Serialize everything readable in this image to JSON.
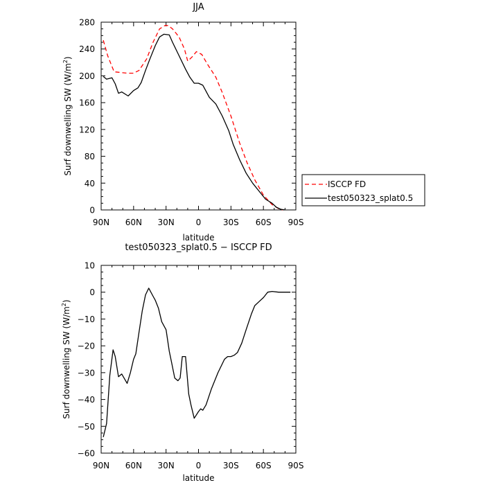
{
  "chart_data": [
    {
      "type": "line",
      "title": "JJA",
      "xlabel": "latitude",
      "ylabel": "Surf downwelling SW (W/m",
      "ylabel_sup": "2",
      "ylabel_close": ")",
      "xlim": [
        90,
        -90
      ],
      "ylim": [
        0,
        280
      ],
      "xticks": [
        90,
        60,
        30,
        0,
        -30,
        -60,
        -90
      ],
      "xtick_labels": [
        "90N",
        "60N",
        "30N",
        "0",
        "30S",
        "60S",
        "90S"
      ],
      "yticks": [
        0,
        40,
        80,
        120,
        160,
        200,
        240,
        280
      ],
      "ytick_labels": [
        "0",
        "40",
        "80",
        "120",
        "160",
        "200",
        "240",
        "280"
      ],
      "legend_position": "right",
      "series": [
        {
          "name": "ISCCP FD",
          "color": "#ff0000",
          "dash": "dashed",
          "points": [
            [
              88,
              253
            ],
            [
              84,
              230
            ],
            [
              78,
              206
            ],
            [
              72,
              205
            ],
            [
              66,
              204
            ],
            [
              60,
              204
            ],
            [
              55,
              208
            ],
            [
              48,
              225
            ],
            [
              42,
              250
            ],
            [
              36,
              270
            ],
            [
              31,
              275
            ],
            [
              28,
              275
            ],
            [
              24,
              270
            ],
            [
              18,
              258
            ],
            [
              13,
              240
            ],
            [
              10,
              222
            ],
            [
              6,
              228
            ],
            [
              2,
              236
            ],
            [
              -3,
              232
            ],
            [
              -8,
              218
            ],
            [
              -16,
              198
            ],
            [
              -22,
              175
            ],
            [
              -30,
              140
            ],
            [
              -38,
              100
            ],
            [
              -45,
              70
            ],
            [
              -52,
              45
            ],
            [
              -60,
              22
            ],
            [
              -68,
              8
            ],
            [
              -74,
              2
            ],
            [
              -78,
              0
            ]
          ]
        },
        {
          "name": "test050323_splat0.5",
          "color": "#000000",
          "dash": "solid",
          "points": [
            [
              88,
              199
            ],
            [
              85,
              195
            ],
            [
              80,
              197
            ],
            [
              77,
              188
            ],
            [
              74,
              174
            ],
            [
              71,
              176
            ],
            [
              65,
              170
            ],
            [
              60,
              178
            ],
            [
              56,
              182
            ],
            [
              53,
              190
            ],
            [
              49,
              208
            ],
            [
              45,
              225
            ],
            [
              40,
              245
            ],
            [
              36,
              258
            ],
            [
              32,
              262
            ],
            [
              27,
              261
            ],
            [
              24,
              250
            ],
            [
              18,
              230
            ],
            [
              12,
              210
            ],
            [
              8,
              198
            ],
            [
              4,
              189
            ],
            [
              0,
              189
            ],
            [
              -4,
              186
            ],
            [
              -10,
              168
            ],
            [
              -16,
              158
            ],
            [
              -22,
              140
            ],
            [
              -28,
              118
            ],
            [
              -32,
              98
            ],
            [
              -38,
              75
            ],
            [
              -44,
              55
            ],
            [
              -50,
              40
            ],
            [
              -56,
              28
            ],
            [
              -62,
              16
            ],
            [
              -68,
              10
            ],
            [
              -72,
              4
            ],
            [
              -76,
              1
            ],
            [
              -80,
              0
            ]
          ]
        }
      ]
    },
    {
      "type": "line",
      "title": "test050323_splat0.5 − ISCCP FD",
      "xlabel": "latitude",
      "ylabel": "Surf downwelling SW (W/m",
      "ylabel_sup": "2",
      "ylabel_close": ")",
      "xlim": [
        90,
        -90
      ],
      "ylim": [
        -60,
        10
      ],
      "xticks": [
        90,
        60,
        30,
        0,
        -30,
        -60,
        -90
      ],
      "xtick_labels": [
        "90N",
        "60N",
        "30N",
        "0",
        "30S",
        "60S",
        "90S"
      ],
      "yticks": [
        -60,
        -50,
        -40,
        -30,
        -20,
        -10,
        0,
        10
      ],
      "ytick_labels": [
        "−60",
        "−50",
        "−40",
        "−30",
        "−20",
        "−10",
        "0",
        "10"
      ],
      "series": [
        {
          "color": "#000000",
          "dash": "solid",
          "points": [
            [
              88,
              -54
            ],
            [
              85,
              -49
            ],
            [
              82,
              -31
            ],
            [
              79,
              -21.5
            ],
            [
              77,
              -24
            ],
            [
              74,
              -31.5
            ],
            [
              71,
              -30.5
            ],
            [
              66,
              -34
            ],
            [
              63,
              -30
            ],
            [
              60,
              -25
            ],
            [
              58,
              -23
            ],
            [
              55,
              -15
            ],
            [
              52,
              -7
            ],
            [
              49,
              -1
            ],
            [
              46,
              1.5
            ],
            [
              42,
              -1.5
            ],
            [
              40,
              -3
            ],
            [
              37,
              -6
            ],
            [
              34,
              -11
            ],
            [
              30,
              -14
            ],
            [
              27,
              -22
            ],
            [
              25,
              -26
            ],
            [
              22,
              -32
            ],
            [
              19,
              -33
            ],
            [
              17,
              -32
            ],
            [
              15,
              -24
            ],
            [
              12,
              -24
            ],
            [
              9,
              -38
            ],
            [
              7,
              -42
            ],
            [
              4,
              -47
            ],
            [
              0,
              -44.5
            ],
            [
              -2,
              -43.5
            ],
            [
              -4,
              -44
            ],
            [
              -7,
              -42
            ],
            [
              -12,
              -36
            ],
            [
              -18,
              -30
            ],
            [
              -24,
              -25
            ],
            [
              -27,
              -24
            ],
            [
              -30,
              -24
            ],
            [
              -33,
              -23.5
            ],
            [
              -36,
              -22.5
            ],
            [
              -40,
              -19
            ],
            [
              -44,
              -14
            ],
            [
              -49,
              -8
            ],
            [
              -52,
              -5
            ],
            [
              -56,
              -3.5
            ],
            [
              -60,
              -2
            ],
            [
              -64,
              0
            ],
            [
              -68,
              0.3
            ],
            [
              -74,
              0
            ],
            [
              -80,
              0
            ],
            [
              -85,
              0
            ]
          ]
        }
      ]
    }
  ]
}
